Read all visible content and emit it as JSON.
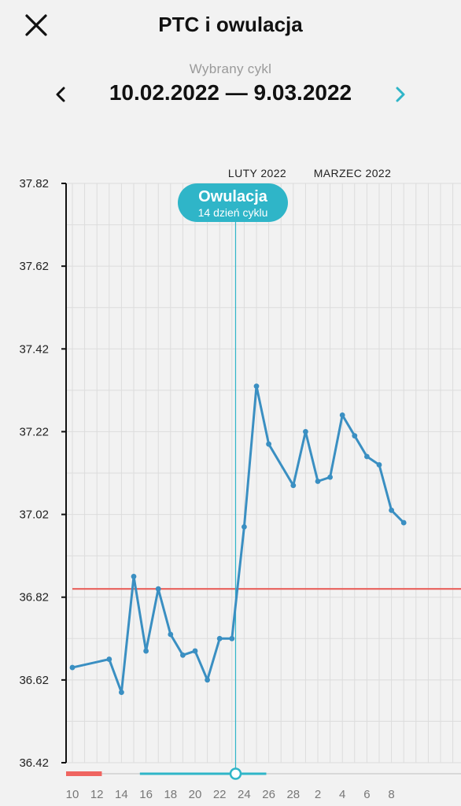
{
  "header": {
    "title": "PTC i owulacja",
    "close_icon": "close-icon"
  },
  "cycle": {
    "label": "Wybrany cykl",
    "range": "10.02.2022 — 9.03.2022",
    "prev_icon": "chevron-left-icon",
    "next_icon": "chevron-right-icon",
    "next_color": "#2fb5c8"
  },
  "ovulation": {
    "title": "Owulacja",
    "subtitle": "14 dzień cyklu",
    "color": "#2fb5c8"
  },
  "chart_data": {
    "type": "line",
    "month_labels": [
      "LUTY 2022",
      "MARZEC 2022"
    ],
    "y_ticks": [
      "37.82",
      "37.62",
      "37.42",
      "37.22",
      "37.02",
      "36.82",
      "36.62",
      "36.42"
    ],
    "ylim": [
      36.42,
      37.82
    ],
    "x_tick_labels": [
      "10",
      "12",
      "14",
      "16",
      "18",
      "20",
      "22",
      "24",
      "26",
      "28",
      "2",
      "4",
      "6",
      "8"
    ],
    "days": 32,
    "series": [
      {
        "values": [
          {
            "day": 0,
            "temp": 36.65
          },
          {
            "day": 3,
            "temp": 36.67
          },
          {
            "day": 4,
            "temp": 36.59
          },
          {
            "day": 5,
            "temp": 36.87
          },
          {
            "day": 6,
            "temp": 36.69
          },
          {
            "day": 7,
            "temp": 36.84
          },
          {
            "day": 8,
            "temp": 36.73
          },
          {
            "day": 9,
            "temp": 36.68
          },
          {
            "day": 10,
            "temp": 36.69
          },
          {
            "day": 11,
            "temp": 36.62
          },
          {
            "day": 12,
            "temp": 36.72
          },
          {
            "day": 13,
            "temp": 36.72
          },
          {
            "day": 14,
            "temp": 36.99
          },
          {
            "day": 15,
            "temp": 37.33
          },
          {
            "day": 16,
            "temp": 37.19
          },
          {
            "day": 18,
            "temp": 37.09
          },
          {
            "day": 19,
            "temp": 37.22
          },
          {
            "day": 20,
            "temp": 37.1
          },
          {
            "day": 21,
            "temp": 37.11
          },
          {
            "day": 22,
            "temp": 37.26
          },
          {
            "day": 23,
            "temp": 37.21
          },
          {
            "day": 24,
            "temp": 37.16
          },
          {
            "day": 25,
            "temp": 37.14
          },
          {
            "day": 26,
            "temp": 37.03
          },
          {
            "day": 27,
            "temp": 37.0
          }
        ],
        "color": "#3a8fc2"
      }
    ],
    "coverline": {
      "temp": 36.84,
      "color": "#e8605b"
    },
    "ovulation_day": 13.3,
    "period_days": [
      0,
      2.4
    ],
    "fertile_window": [
      5.5,
      15.8
    ],
    "grid": true
  }
}
